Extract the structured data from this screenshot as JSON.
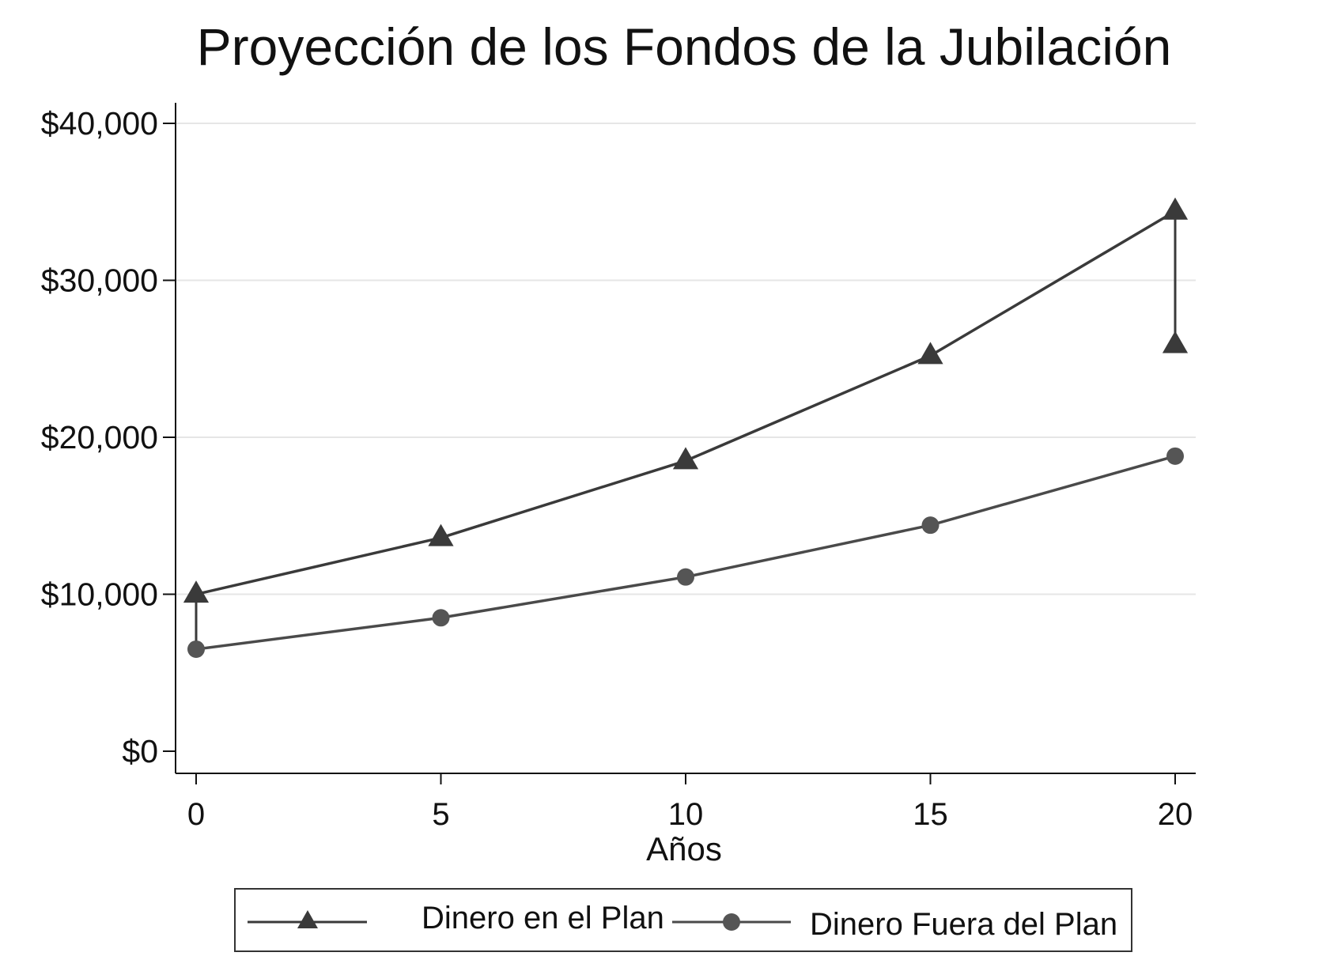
{
  "chart_data": {
    "type": "line",
    "title": "Proyección de los Fondos de la Jubilación",
    "xlabel": "Años",
    "ylabel": "",
    "x": [
      0,
      5,
      10,
      15,
      20
    ],
    "xlim": [
      0,
      20
    ],
    "ylim": [
      0,
      40000
    ],
    "x_ticks": [
      0,
      5,
      10,
      15,
      20
    ],
    "x_tick_labels": [
      "0",
      "5",
      "10",
      "15",
      "20"
    ],
    "y_ticks": [
      0,
      10000,
      20000,
      30000,
      40000
    ],
    "y_tick_labels": [
      "$0",
      "$10,000",
      "$20,000",
      "$30,000",
      "$40,000"
    ],
    "grid": true,
    "legend_position": "bottom",
    "series": [
      {
        "name": "Dinero en el Plan",
        "marker": "triangle",
        "color": "#3a3a3a",
        "values": [
          10000,
          13600,
          18500,
          25200,
          34400
        ]
      },
      {
        "name": "Dinero Fuera del Plan",
        "marker": "circle",
        "color": "#4a4a4a",
        "values": [
          6500,
          8500,
          11100,
          14400,
          18800
        ]
      }
    ],
    "annotations": [
      {
        "type": "triangle-marker",
        "x": 20,
        "y": 25900
      },
      {
        "type": "vertical-connector",
        "x": 0,
        "y1": 6500,
        "y2": 10000
      },
      {
        "type": "vertical-connector",
        "x": 20,
        "y1": 25900,
        "y2": 34400
      }
    ]
  }
}
